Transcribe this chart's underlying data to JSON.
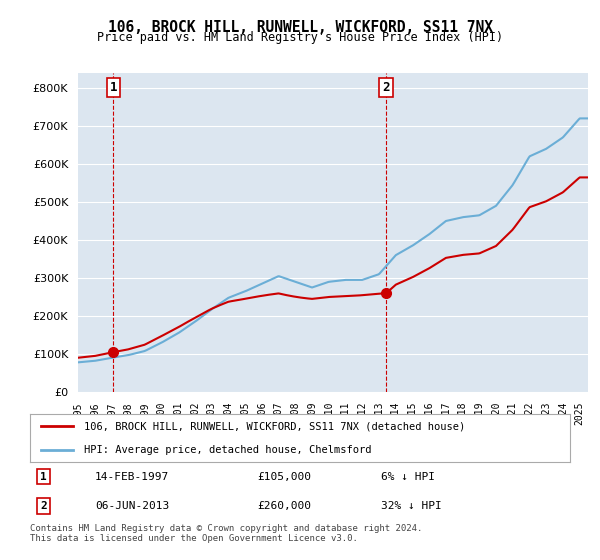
{
  "title": "106, BROCK HILL, RUNWELL, WICKFORD, SS11 7NX",
  "subtitle": "Price paid vs. HM Land Registry's House Price Index (HPI)",
  "bg_color": "#dce6f0",
  "plot_bg": "#dce6f0",
  "years": [
    1995,
    1996,
    1997,
    1998,
    1999,
    2000,
    2001,
    2002,
    2003,
    2004,
    2005,
    2006,
    2007,
    2008,
    2009,
    2010,
    2011,
    2012,
    2013,
    2014,
    2015,
    2016,
    2017,
    2018,
    2019,
    2020,
    2021,
    2022,
    2023,
    2024,
    2025
  ],
  "hpi_values": [
    78000,
    82000,
    90000,
    97000,
    108000,
    130000,
    155000,
    185000,
    218000,
    248000,
    265000,
    285000,
    305000,
    290000,
    275000,
    290000,
    295000,
    295000,
    310000,
    360000,
    385000,
    415000,
    450000,
    460000,
    465000,
    490000,
    545000,
    620000,
    640000,
    670000,
    720000
  ],
  "hpi_color": "#6baed6",
  "sale1_year": 1997.12,
  "sale1_price": 105000,
  "sale2_year": 2013.43,
  "sale2_price": 260000,
  "sale_color": "#cc0000",
  "dashed_line_color": "#cc0000",
  "legend_label_red": "106, BROCK HILL, RUNWELL, WICKFORD, SS11 7NX (detached house)",
  "legend_label_blue": "HPI: Average price, detached house, Chelmsford",
  "table": [
    {
      "num": "1",
      "date": "14-FEB-1997",
      "price": "£105,000",
      "hpi": "6% ↓ HPI"
    },
    {
      "num": "2",
      "date": "06-JUN-2013",
      "price": "£260,000",
      "hpi": "32% ↓ HPI"
    }
  ],
  "footer": "Contains HM Land Registry data © Crown copyright and database right 2024.\nThis data is licensed under the Open Government Licence v3.0.",
  "ylim": [
    0,
    840000
  ],
  "xlim_start": 1995,
  "xlim_end": 2025.5
}
